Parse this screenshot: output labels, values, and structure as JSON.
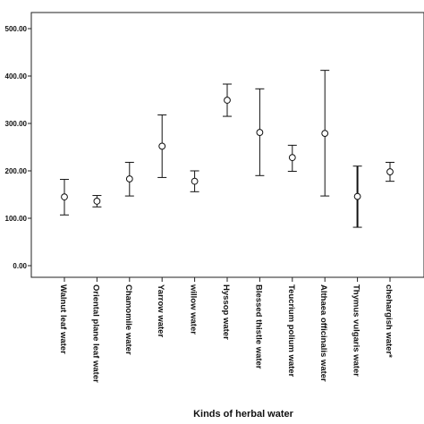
{
  "chart_data": {
    "type": "scatter",
    "subtype": "error-bar",
    "xlabel": "Kinds of herbal water",
    "ylabel": "",
    "ylim": [
      0,
      500
    ],
    "yticks": [
      0,
      100,
      200,
      300,
      400,
      500
    ],
    "ytick_labels": [
      "0.00",
      "100.00",
      "200.00",
      "300.00",
      "400.00",
      "500.00"
    ],
    "grid": false,
    "categories": [
      "Walnut leaf water",
      "Oriental plane leaf water",
      "Chamomile water",
      "Yarrow water",
      "willow water",
      "Hyssop water",
      "Blessed thistle water",
      "Teucrium polium water",
      "Althaea officinalis water",
      "Thymus vulgaris water",
      "chehargish water*"
    ],
    "mean": [
      145,
      136,
      183,
      252,
      178,
      349,
      281,
      228,
      279,
      146,
      198
    ],
    "lower": [
      107,
      124,
      147,
      186,
      156,
      315,
      190,
      199,
      147,
      81,
      178
    ],
    "upper": [
      182,
      148,
      218,
      318,
      200,
      383,
      373,
      254,
      412,
      210,
      218
    ],
    "colors": {
      "line": "#111111",
      "background": "#ffffff"
    }
  }
}
